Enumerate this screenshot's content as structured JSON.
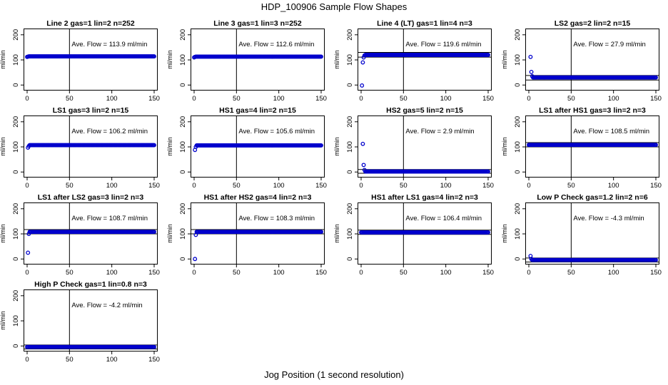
{
  "title": "HDP_100906  Sample Flow Shapes",
  "xlabel": "Jog Position (1 second resolution)",
  "panel_ylabel": "ml/min",
  "annotation_prefix": "Ave. Flow = ",
  "annotation_unit": "ml/min",
  "point_color": "#0000cc",
  "chart_data": [
    {
      "type": "scatter",
      "title": "Line 2 gas=1 lin=2 n=252",
      "ave_flow": "113.9",
      "xlim": [
        0,
        150
      ],
      "ylim": [
        0,
        200
      ],
      "xticks": [
        0,
        50,
        100,
        150
      ],
      "yticks": [
        0,
        100,
        200
      ],
      "vline": 50,
      "hlines": [],
      "initial_points": [
        [
          0,
          112
        ],
        [
          1,
          113
        ]
      ],
      "plateau": {
        "value": 114,
        "from": 2,
        "to": 150
      }
    },
    {
      "type": "scatter",
      "title": "Line 3 gas=1 lin=3 n=252",
      "ave_flow": "112.6",
      "xlim": [
        0,
        150
      ],
      "ylim": [
        0,
        200
      ],
      "xticks": [
        0,
        50,
        100,
        150
      ],
      "yticks": [
        0,
        100,
        200
      ],
      "vline": 50,
      "hlines": [],
      "initial_points": [
        [
          0,
          110
        ],
        [
          1,
          112
        ]
      ],
      "plateau": {
        "value": 113,
        "from": 2,
        "to": 150
      }
    },
    {
      "type": "scatter",
      "title": "Line 4 (LT) gas=1 lin=4 n=3",
      "ave_flow": "119.6",
      "xlim": [
        0,
        150
      ],
      "ylim": [
        0,
        200
      ],
      "xticks": [
        0,
        50,
        100,
        150
      ],
      "yticks": [
        0,
        100,
        200
      ],
      "vline": 50,
      "hlines": [
        111,
        130
      ],
      "initial_points": [
        [
          1,
          -2
        ],
        [
          2,
          90
        ],
        [
          3,
          110
        ],
        [
          4,
          118
        ]
      ],
      "plateau": {
        "value": 120,
        "from": 5,
        "to": 150
      }
    },
    {
      "type": "scatter",
      "title": "LS2 gas=2 lin=2 n=15",
      "ave_flow": "27.9",
      "xlim": [
        0,
        150
      ],
      "ylim": [
        0,
        200
      ],
      "xticks": [
        0,
        50,
        100,
        150
      ],
      "yticks": [
        0,
        100,
        200
      ],
      "vline": 50,
      "hlines": [
        20,
        38
      ],
      "initial_points": [
        [
          2,
          112
        ],
        [
          3,
          52
        ],
        [
          4,
          35
        ]
      ],
      "plateau": {
        "value": 30,
        "from": 5,
        "to": 150
      }
    },
    {
      "type": "scatter",
      "title": "LS1 gas=3 lin=2 n=15",
      "ave_flow": "106.2",
      "xlim": [
        0,
        150
      ],
      "ylim": [
        0,
        200
      ],
      "xticks": [
        0,
        50,
        100,
        150
      ],
      "yticks": [
        0,
        100,
        200
      ],
      "vline": 50,
      "hlines": [],
      "initial_points": [
        [
          1,
          97
        ],
        [
          2,
          103
        ]
      ],
      "plateau": {
        "value": 107,
        "from": 3,
        "to": 150
      }
    },
    {
      "type": "scatter",
      "title": "HS1 gas=4 lin=2 n=15",
      "ave_flow": "105.6",
      "xlim": [
        0,
        150
      ],
      "ylim": [
        0,
        200
      ],
      "xticks": [
        0,
        50,
        100,
        150
      ],
      "yticks": [
        0,
        100,
        200
      ],
      "vline": 50,
      "hlines": [],
      "initial_points": [
        [
          1,
          88
        ],
        [
          2,
          100
        ]
      ],
      "plateau": {
        "value": 106,
        "from": 3,
        "to": 150
      }
    },
    {
      "type": "scatter",
      "title": "HS2 gas=5 lin=2 n=15",
      "ave_flow": "2.9",
      "xlim": [
        0,
        150
      ],
      "ylim": [
        0,
        200
      ],
      "xticks": [
        0,
        50,
        100,
        150
      ],
      "yticks": [
        0,
        100,
        200
      ],
      "vline": 50,
      "hlines": [
        -5,
        10
      ],
      "initial_points": [
        [
          2,
          112
        ],
        [
          3,
          28
        ],
        [
          4,
          8
        ]
      ],
      "plateau": {
        "value": 2,
        "from": 5,
        "to": 150
      }
    },
    {
      "type": "scatter",
      "title": "LS1 after HS1 gas=3 lin=2 n=3",
      "ave_flow": "108.5",
      "xlim": [
        0,
        150
      ],
      "ylim": [
        0,
        200
      ],
      "xticks": [
        0,
        50,
        100,
        150
      ],
      "yticks": [
        0,
        100,
        200
      ],
      "vline": 50,
      "hlines": [
        100,
        117
      ],
      "initial_points": [
        [
          0,
          108
        ],
        [
          1,
          108
        ]
      ],
      "plateau": {
        "value": 108,
        "from": 2,
        "to": 150
      }
    },
    {
      "type": "scatter",
      "title": "LS1 after LS2 gas=3 lin=2 n=3",
      "ave_flow": "108.7",
      "xlim": [
        0,
        150
      ],
      "ylim": [
        0,
        200
      ],
      "xticks": [
        0,
        50,
        100,
        150
      ],
      "yticks": [
        0,
        100,
        200
      ],
      "vline": 50,
      "hlines": [
        100,
        117
      ],
      "initial_points": [
        [
          1,
          25
        ],
        [
          2,
          100
        ]
      ],
      "plateau": {
        "value": 108,
        "from": 3,
        "to": 150
      }
    },
    {
      "type": "scatter",
      "title": "HS1 after HS2 gas=4 lin=2 n=3",
      "ave_flow": "108.3",
      "xlim": [
        0,
        150
      ],
      "ylim": [
        0,
        200
      ],
      "xticks": [
        0,
        50,
        100,
        150
      ],
      "yticks": [
        0,
        100,
        200
      ],
      "vline": 50,
      "hlines": [
        100,
        117
      ],
      "initial_points": [
        [
          1,
          0
        ],
        [
          2,
          96
        ]
      ],
      "plateau": {
        "value": 108,
        "from": 3,
        "to": 150
      }
    },
    {
      "type": "scatter",
      "title": "HS1 after LS1 gas=4 lin=2 n=3",
      "ave_flow": "106.4",
      "xlim": [
        0,
        150
      ],
      "ylim": [
        0,
        200
      ],
      "xticks": [
        0,
        50,
        100,
        150
      ],
      "yticks": [
        0,
        100,
        200
      ],
      "vline": 50,
      "hlines": [
        98,
        115
      ],
      "initial_points": [
        [
          0,
          106
        ],
        [
          1,
          106
        ]
      ],
      "plateau": {
        "value": 106,
        "from": 2,
        "to": 150
      }
    },
    {
      "type": "scatter",
      "title": "Low P Check gas=1.2 lin=2 n=6",
      "ave_flow": "-4.3",
      "xlim": [
        0,
        150
      ],
      "ylim": [
        0,
        200
      ],
      "xticks": [
        0,
        50,
        100,
        150
      ],
      "yticks": [
        0,
        100,
        200
      ],
      "vline": 50,
      "hlines": [
        -12,
        4
      ],
      "initial_points": [
        [
          2,
          12
        ],
        [
          3,
          0
        ]
      ],
      "plateau": {
        "value": -4,
        "from": 4,
        "to": 150
      }
    },
    {
      "type": "scatter",
      "title": "High P Check gas=1 lin=0.8 n=3",
      "ave_flow": "-4.2",
      "xlim": [
        0,
        150
      ],
      "ylim": [
        0,
        200
      ],
      "xticks": [
        0,
        50,
        100,
        150
      ],
      "yticks": [
        0,
        100,
        200
      ],
      "vline": 50,
      "hlines": [
        -12,
        4
      ],
      "initial_points": [
        [
          0,
          -4
        ],
        [
          1,
          -4
        ]
      ],
      "plateau": {
        "value": -4,
        "from": 2,
        "to": 150
      }
    }
  ]
}
